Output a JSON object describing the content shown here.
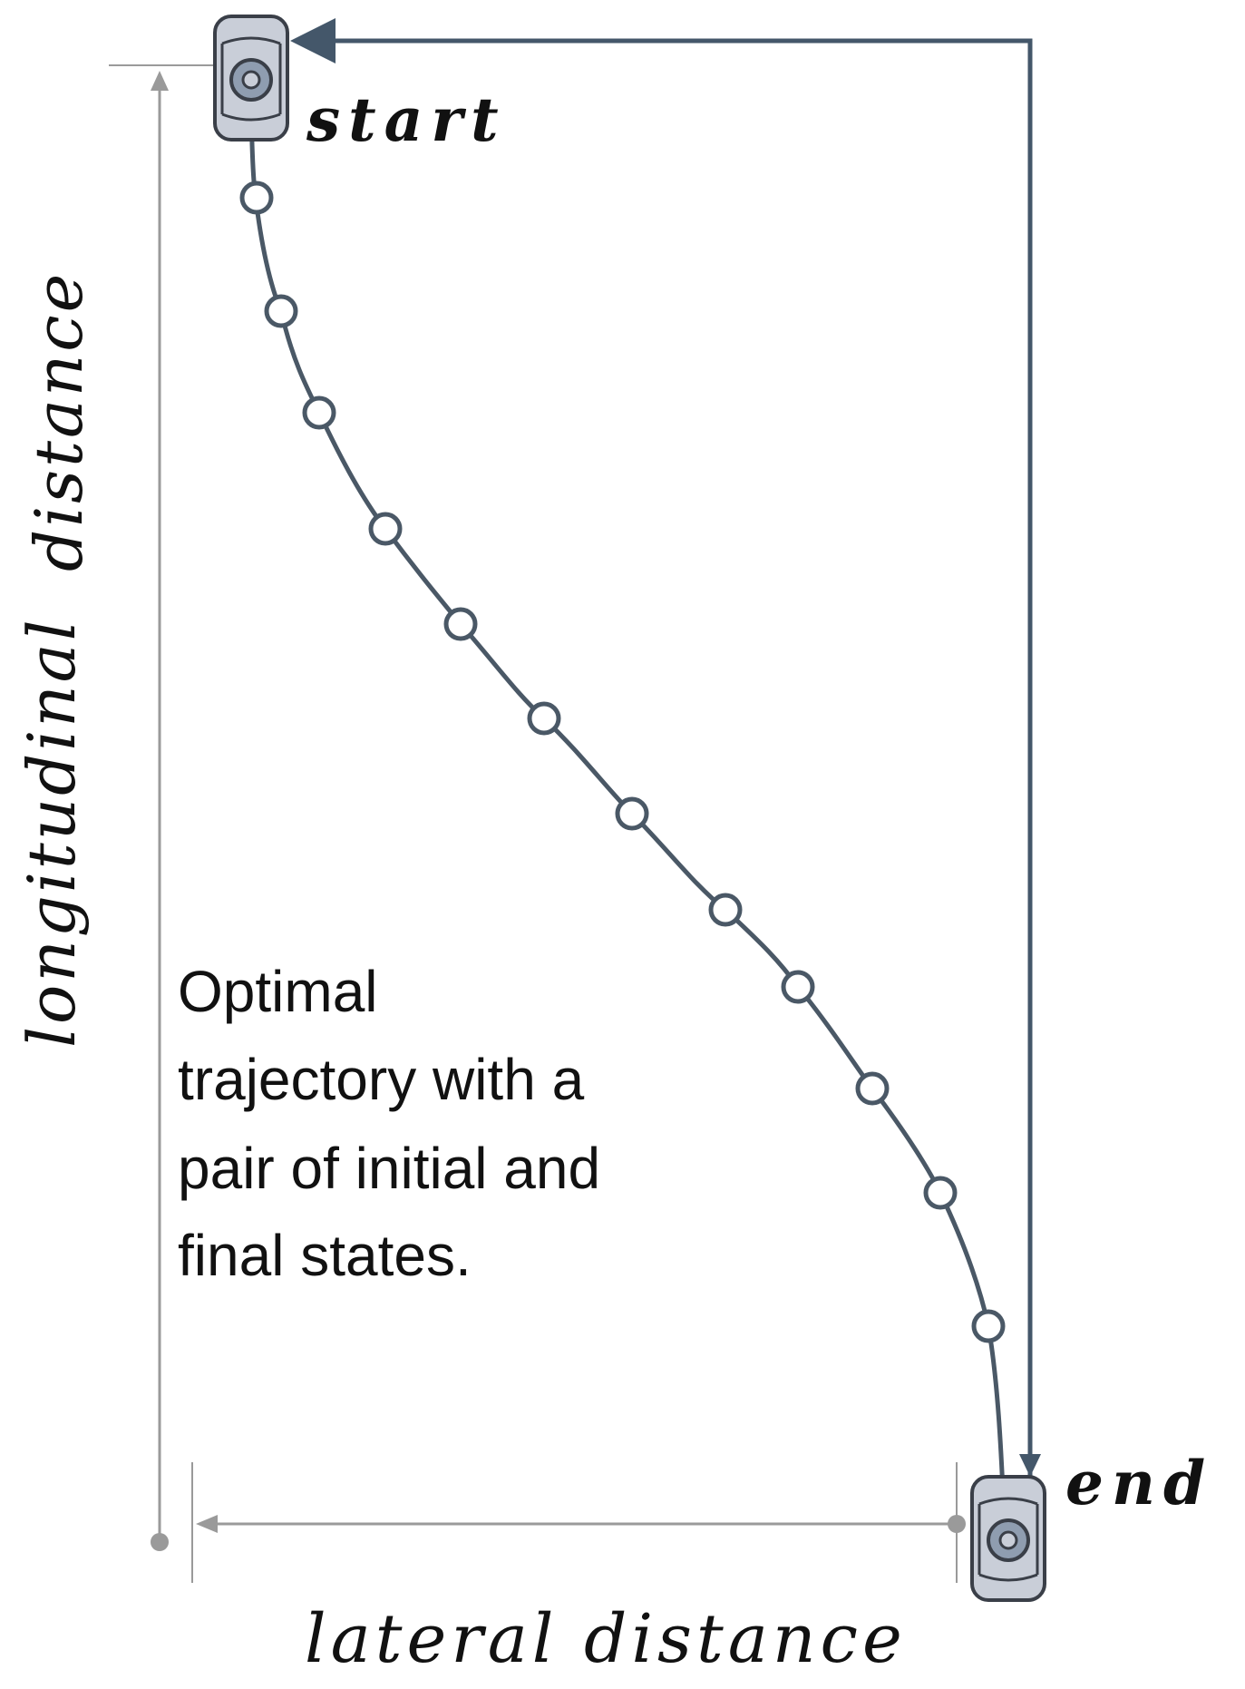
{
  "labels": {
    "start": "start",
    "end": "end",
    "longitudinal": "longitudinal",
    "distance_vertical": "distance",
    "lateral_distance": "lateral distance",
    "caption_lines": [
      "Optimal",
      "trajectory with a",
      "pair of initial and",
      "final states."
    ]
  },
  "colors": {
    "trajectory": "#4a5866",
    "arrow": "#44576a",
    "dimension": "#9a9a9a",
    "car_body": "#c9ced8",
    "car_outline": "#3a3f48",
    "text": "#111111"
  },
  "trajectory_point_count": 14
}
